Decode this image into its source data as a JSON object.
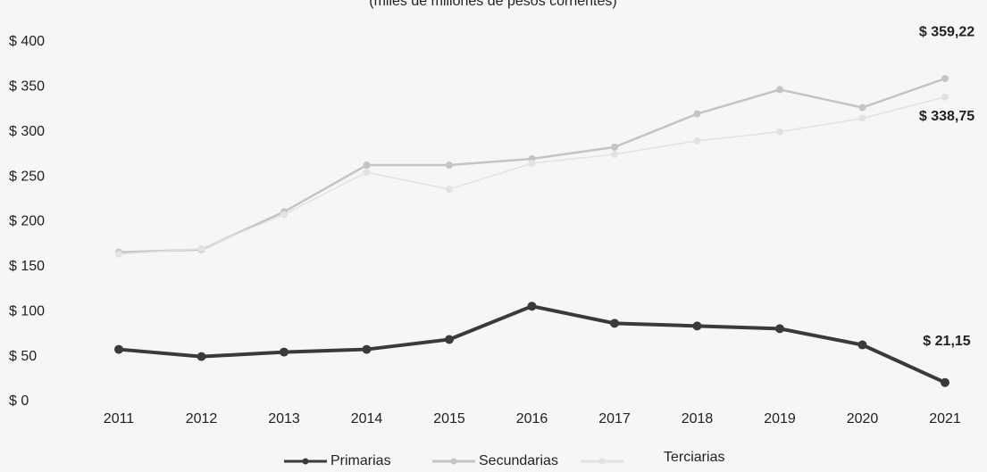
{
  "chart_data": {
    "type": "line",
    "subtitle": "(miles de millones de pesos corrientes)",
    "categories": [
      "2011",
      "2012",
      "2013",
      "2014",
      "2015",
      "2016",
      "2017",
      "2018",
      "2019",
      "2020",
      "2021"
    ],
    "series": [
      {
        "name": "Primarias",
        "color": "#3a3a3a",
        "values": [
          58,
          50,
          55,
          58,
          69,
          106,
          87,
          84,
          81,
          63,
          21.15
        ],
        "value_labels": [
          null,
          null,
          null,
          null,
          null,
          null,
          null,
          null,
          null,
          null,
          "$ 21,15"
        ]
      },
      {
        "name": "Secundarias",
        "color": "#c4c4c4",
        "values": [
          166,
          169,
          211,
          263,
          263,
          270,
          283,
          320,
          347,
          327,
          359.22
        ],
        "value_labels": [
          null,
          null,
          null,
          null,
          null,
          null,
          null,
          null,
          null,
          null,
          "$ 359,22"
        ]
      },
      {
        "name": "Terciarias",
        "color": "#e2e2e2",
        "values": [
          164,
          170,
          208,
          255,
          236,
          265,
          275,
          290,
          300,
          315,
          338.75
        ],
        "value_labels": [
          null,
          null,
          null,
          null,
          null,
          null,
          null,
          null,
          null,
          null,
          "$ 338,75"
        ]
      }
    ],
    "ylim": [
      0,
      400
    ],
    "yticks": [
      {
        "value": 0,
        "label": "$ 0"
      },
      {
        "value": 50,
        "label": "$ 50"
      },
      {
        "value": 100,
        "label": "$ 100"
      },
      {
        "value": 150,
        "label": "$ 150"
      },
      {
        "value": 200,
        "label": "$ 200"
      },
      {
        "value": 250,
        "label": "$ 250"
      },
      {
        "value": 300,
        "label": "$ 300"
      },
      {
        "value": 350,
        "label": "$ 350"
      },
      {
        "value": 400,
        "label": "$ 400"
      }
    ],
    "legend": "bottom"
  }
}
